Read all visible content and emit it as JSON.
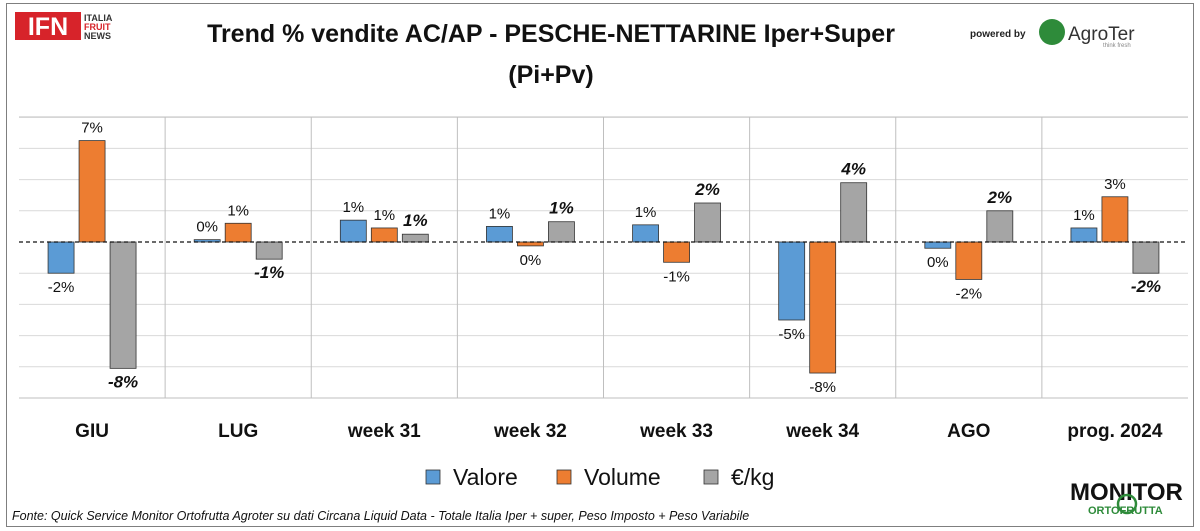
{
  "chart_data": {
    "type": "bar",
    "title_line1": "Trend % vendite AC/AP - PESCHE-NETTARINE  Iper+Super",
    "title_line2": "(Pi+Pv)",
    "categories": [
      "GIU",
      "LUG",
      "week 31",
      "week 32",
      "week 33",
      "week 34",
      "AGO",
      "prog. 2024"
    ],
    "series": [
      {
        "name": "Valore",
        "color": "#5b9bd5",
        "values": [
          -2.0,
          0.15,
          1.4,
          1.0,
          1.1,
          -5.0,
          -0.4,
          0.9
        ],
        "labels": [
          "-2%",
          "0%",
          "1%",
          "1%",
          "1%",
          "-5%",
          "0%",
          "1%"
        ]
      },
      {
        "name": "Volume",
        "color": "#ed7d31",
        "values": [
          6.5,
          1.2,
          0.9,
          -0.25,
          -1.3,
          -8.4,
          -2.4,
          2.9
        ],
        "labels": [
          "7%",
          "1%",
          "1%",
          "0%",
          "-1%",
          "-8%",
          "-2%",
          "3%"
        ]
      },
      {
        "name": "€/kg",
        "color": "#a5a5a5",
        "values": [
          -8.1,
          -1.1,
          0.5,
          1.3,
          2.5,
          3.8,
          2.0,
          -2.0
        ],
        "labels": [
          "-8%",
          "-1%",
          "1%",
          "1%",
          "2%",
          "4%",
          "2%",
          "-2%"
        ]
      }
    ],
    "ylim": [
      -10,
      8
    ],
    "legend": "bottom",
    "grid": true
  },
  "header": {
    "logo_left": {
      "main": "IFN",
      "line1": "ITALIA",
      "line2": "FRUIT",
      "line3": "NEWS"
    },
    "powered_by": "powered by",
    "agroter": "AgroTer",
    "agroter_sub": "think fresh"
  },
  "footer": {
    "source": "Fonte: Quick Service Monitor Ortofrutta Agroter su dati Circana Liquid Data - Totale Italia Iper + super, Peso Imposto + Peso Variabile",
    "monitor_line1": "MONITOR",
    "monitor_line2": "ORTOFRUTTA"
  },
  "colors": {
    "valore": "#5b9bd5",
    "volume": "#ed7d31",
    "eur_kg": "#a5a5a5",
    "ifn_red": "#d7232a",
    "agroter_green": "#2e8b3a"
  }
}
